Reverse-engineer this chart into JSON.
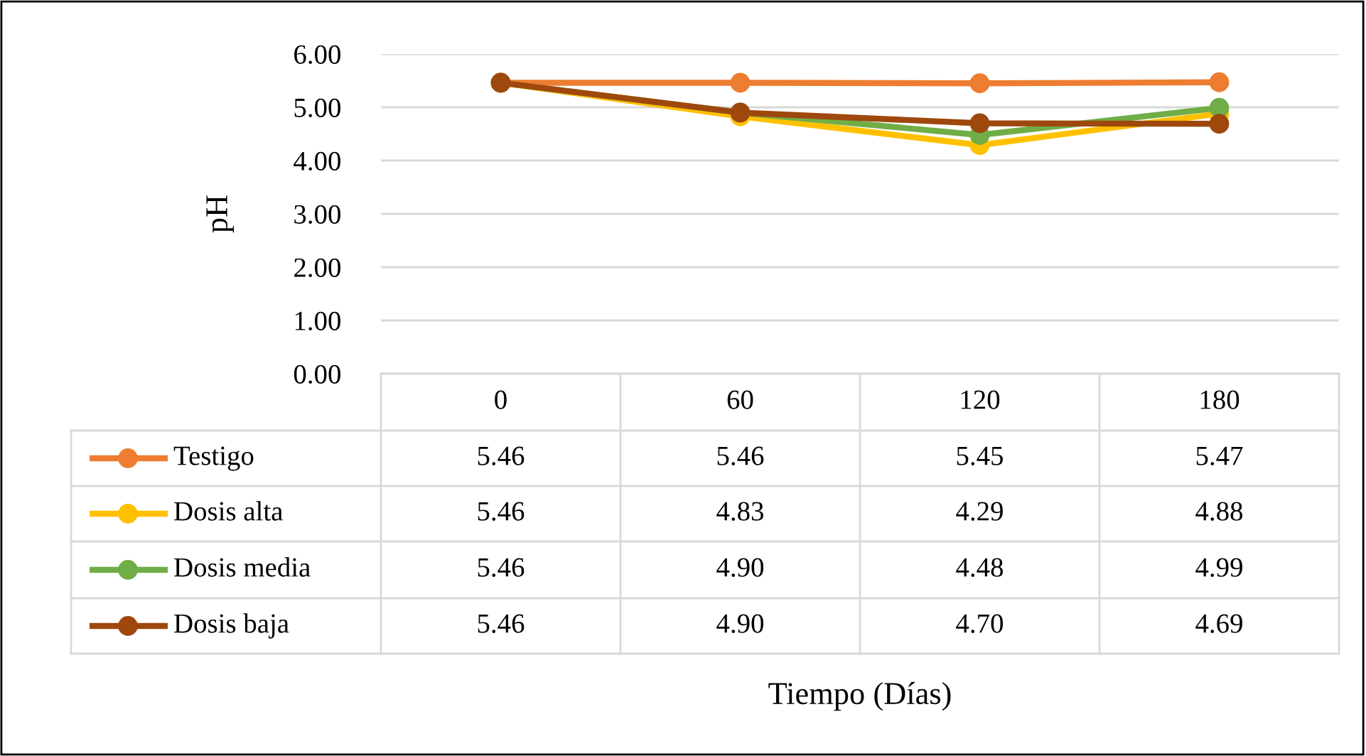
{
  "chart_data": {
    "type": "line",
    "ylabel": "pH",
    "annotations": [
      "Tiempo (Días)"
    ],
    "categories": [
      "0",
      "60",
      "120",
      "180"
    ],
    "ylim": [
      0,
      6
    ],
    "yticks": [
      {
        "value": 0,
        "label": "0.00"
      },
      {
        "value": 1,
        "label": "1.00"
      },
      {
        "value": 2,
        "label": "2.00"
      },
      {
        "value": 3,
        "label": "3.00"
      },
      {
        "value": 4,
        "label": "4.00"
      },
      {
        "value": 5,
        "label": "5.00"
      },
      {
        "value": 6,
        "label": "6.00"
      }
    ],
    "grid": "y",
    "legend": "bottom",
    "marker": "circle",
    "line_style": "solid",
    "series": [
      {
        "name": "Testigo",
        "color": "#ed7d31",
        "values": [
          5.46,
          5.46,
          5.45,
          5.47
        ],
        "value_labels": [
          "5.46",
          "5.46",
          "5.45",
          "5.47"
        ]
      },
      {
        "name": "Dosis alta",
        "color": "#ffc000",
        "values": [
          5.46,
          4.83,
          4.29,
          4.88
        ],
        "value_labels": [
          "5.46",
          "4.83",
          "4.29",
          "4.88"
        ]
      },
      {
        "name": "Dosis media",
        "color": "#70ad47",
        "values": [
          5.46,
          4.9,
          4.48,
          4.99
        ],
        "value_labels": [
          "5.46",
          "4.90",
          "4.48",
          "4.99"
        ]
      },
      {
        "name": "Dosis baja",
        "color": "#9e480e",
        "values": [
          5.46,
          4.9,
          4.7,
          4.69
        ],
        "value_labels": [
          "5.46",
          "4.90",
          "4.70",
          "4.69"
        ]
      }
    ]
  }
}
